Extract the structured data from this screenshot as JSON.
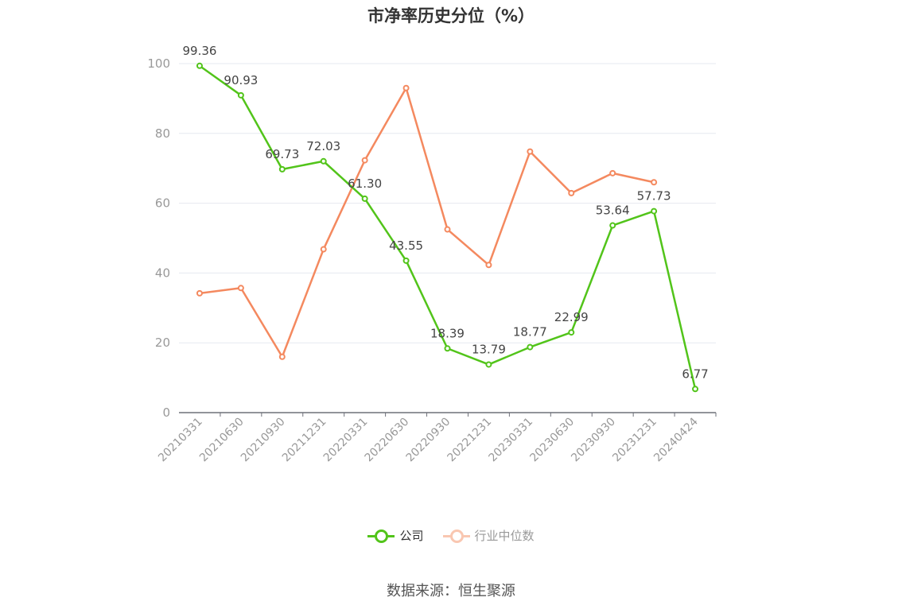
{
  "chart_data": {
    "type": "line",
    "title": "市净率历史分位（%）",
    "categories": [
      "20210331",
      "20210630",
      "20210930",
      "20211231",
      "20220331",
      "20220630",
      "20220930",
      "20221231",
      "20230331",
      "20230630",
      "20230930",
      "20231231",
      "20240424"
    ],
    "series": [
      {
        "name": "公司",
        "color": "#52c41a",
        "values": [
          99.36,
          90.93,
          69.73,
          72.03,
          61.3,
          43.55,
          18.39,
          13.79,
          18.77,
          22.99,
          53.64,
          57.73,
          6.77
        ],
        "labels": [
          "99.36",
          "90.93",
          "69.73",
          "72.03",
          "61.30",
          "43.55",
          "18.39",
          "13.79",
          "18.77",
          "22.99",
          "53.64",
          "57.73",
          "6.77"
        ]
      },
      {
        "name": "行业中位数",
        "color": "#f4895f",
        "values": [
          34.2,
          35.7,
          16.0,
          46.8,
          72.3,
          93.0,
          52.5,
          42.3,
          74.8,
          62.9,
          68.6,
          66.0,
          null
        ]
      }
    ],
    "ylim": [
      0,
      100
    ],
    "yticks": [
      0,
      20,
      40,
      60,
      80,
      100
    ],
    "grid": true,
    "legend_position": "bottom"
  },
  "legend": {
    "items": [
      {
        "label": "公司",
        "color": "#52c41a",
        "active": true
      },
      {
        "label": "行业中位数",
        "color": "#f4895f",
        "active": false
      }
    ]
  },
  "source": "数据来源：恒生聚源"
}
